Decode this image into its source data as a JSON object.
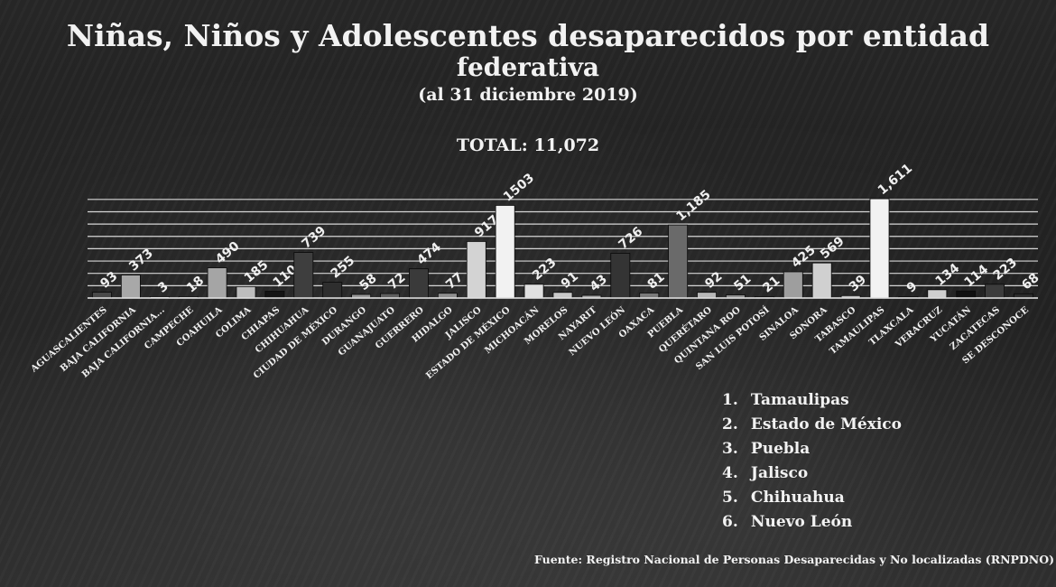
{
  "chart_data": {
    "type": "bar",
    "title": "Niñas, Niños y Adolescentes  desaparecidos por entidad",
    "title_line2": "federativa",
    "subtitle": "(al 31 diciembre 2019)",
    "total_label": "TOTAL: 11,072",
    "categories": [
      "AGUASCALIENTES",
      "BAJA CALIFORNIA",
      "BAJA CALIFORNIA...",
      "CAMPECHE",
      "COAHUILA",
      "COLIMA",
      "CHIAPAS",
      "CHIHUAHUA",
      "CIUDAD DE MÉXICO",
      "DURANGO",
      "GUANAJUATO",
      "GUERRERO",
      "HIDALGO",
      "JALISCO",
      "ESTADO DE MÉXICO",
      "MICHOACÁN",
      "MORELOS",
      "NAYARIT",
      "NUEVO LEÓN",
      "OAXACA",
      "PUEBLA",
      "QUERÉTARO",
      "QUINTANA ROO",
      "SAN LUIS POTOSÍ",
      "SINALOA",
      "SONORA",
      "TABASCO",
      "TAMAULIPAS",
      "TLAXCALA",
      "VERACRUZ",
      "YUCATÁN",
      "ZACATECAS",
      "SE DESCONOCE"
    ],
    "values": [
      93,
      373,
      3,
      18,
      490,
      185,
      110,
      739,
      255,
      58,
      72,
      474,
      77,
      917,
      1503,
      223,
      91,
      43,
      726,
      81,
      1185,
      92,
      51,
      21,
      425,
      569,
      39,
      1611,
      9,
      134,
      114,
      223,
      68
    ],
    "value_labels": [
      "93",
      "373",
      "3",
      "18",
      "490",
      "185",
      "110",
      "739",
      "255",
      "58",
      "72",
      "474",
      "77",
      "917",
      "1503",
      "223",
      "91",
      "43",
      "726",
      "81",
      "1,185",
      "92",
      "51",
      "21",
      "425",
      "569",
      "39",
      "1,611",
      "9",
      "134",
      "114",
      "223",
      "68"
    ],
    "bar_colors": [
      "#4a4a4a",
      "#a8a8a8",
      "#d8d8d8",
      "#999999",
      "#a5a5a5",
      "#bdbdbd",
      "#141414",
      "#3e3e3e",
      "#2e2e2e",
      "#9a9a9a",
      "#5f5f5f",
      "#3a3a3a",
      "#8f8f8f",
      "#d3d3d3",
      "#f2f2f2",
      "#e0e0e0",
      "#c8c8c8",
      "#a8a8a8",
      "#343434",
      "#7a7a7a",
      "#6a6a6a",
      "#b8b8b8",
      "#909090",
      "#5a5a5a",
      "#9e9e9e",
      "#d0d0d0",
      "#bebebe",
      "#f2f2f2",
      "#505050",
      "#cfcfcf",
      "#101010",
      "#3c3c3c",
      "#2c2c2c"
    ],
    "ylim": [
      0,
      1700
    ],
    "grid": true,
    "ranking": [
      {
        "num": "1.",
        "label": "Tamaulipas"
      },
      {
        "num": "2.",
        "label": "Estado de México"
      },
      {
        "num": "3.",
        "label": "Puebla"
      },
      {
        "num": "4.",
        "label": "Jalisco"
      },
      {
        "num": "5.",
        "label": "Chihuahua"
      },
      {
        "num": "6.",
        "label": "Nuevo León"
      }
    ],
    "source": "Fuente: Registro Nacional de Personas Desaparecidas y No localizadas (RNPDNO)"
  }
}
